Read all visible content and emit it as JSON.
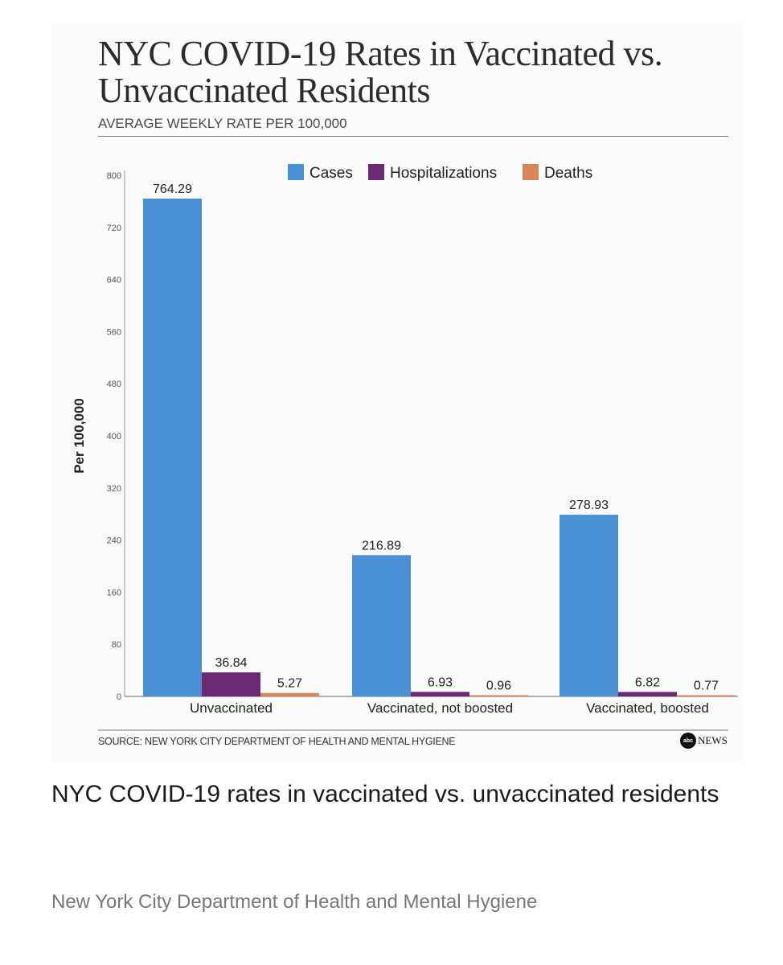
{
  "caption": "NYC COVID-19 rates in vaccinated vs. unvaccinated residents",
  "credit": "New York City Department of Health and Mental Hygiene",
  "chart_data": {
    "type": "bar",
    "title": "NYC COVID-19 Rates in Vaccinated vs. Unvaccinated Residents",
    "subtitle": "AVERAGE WEEKLY RATE PER 100,000",
    "ylabel": "Per 100,000",
    "xlabel": "",
    "ylim": [
      0,
      800
    ],
    "yticks": [
      "0",
      "80",
      "160",
      "240",
      "320",
      "400",
      "480",
      "560",
      "640",
      "720",
      "800"
    ],
    "categories": [
      "Unvaccinated",
      "Vaccinated, not boosted",
      "Vaccinated, boosted"
    ],
    "series": [
      {
        "name": "Cases",
        "color": "#4a90d4",
        "values": [
          764.29,
          216.89,
          278.93
        ],
        "labels": [
          "764.29",
          "216.89",
          "278.93"
        ]
      },
      {
        "name": "Hospitalizations",
        "color": "#6b2a73",
        "values": [
          36.84,
          6.93,
          6.82
        ],
        "labels": [
          "36.84",
          "6.93",
          "6.82"
        ]
      },
      {
        "name": "Deaths",
        "color": "#d9875a",
        "values": [
          5.27,
          0.96,
          0.77
        ],
        "labels": [
          "5.27",
          "0.96",
          "0.77"
        ]
      }
    ],
    "legend_position": "top-center",
    "grid": false,
    "source": "SOURCE: NEW YORK CITY DEPARTMENT OF HEALTH AND MENTAL HYGIENE",
    "logo": {
      "mark": "abc",
      "text": "NEWS"
    }
  }
}
